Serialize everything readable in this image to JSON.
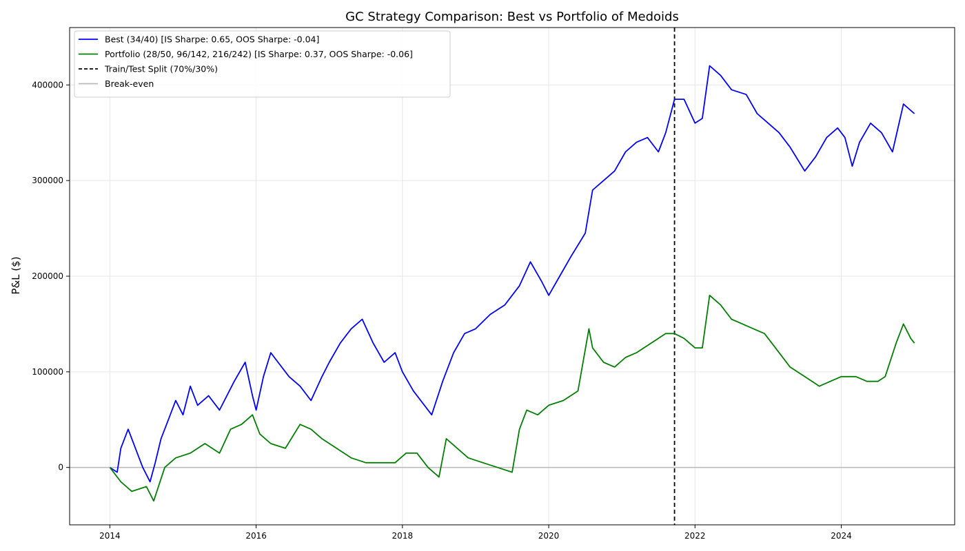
{
  "chart_data": {
    "type": "line",
    "title": "GC Strategy Comparison: Best vs Portfolio of Medoids",
    "xlabel": "",
    "ylabel": "P&L ($)",
    "xlim": [
      2013.45,
      2025.55
    ],
    "ylim": [
      -60000,
      460000
    ],
    "x_ticks": [
      2014,
      2016,
      2018,
      2020,
      2022,
      2024
    ],
    "y_ticks": [
      0,
      100000,
      200000,
      300000,
      400000
    ],
    "grid": true,
    "legend_position": "top-left",
    "split_x": 2021.72,
    "breakeven_y": 0,
    "series": [
      {
        "name": "Best (34/40) [IS Sharpe: 0.65, OOS Sharpe: -0.04]",
        "color": "#0000ff",
        "x": [
          2014.0,
          2014.1,
          2014.15,
          2014.25,
          2014.3,
          2014.35,
          2014.45,
          2014.55,
          2014.62,
          2014.7,
          2014.8,
          2014.9,
          2015.0,
          2015.1,
          2015.2,
          2015.35,
          2015.5,
          2015.7,
          2015.85,
          2015.95,
          2016.0,
          2016.1,
          2016.2,
          2016.3,
          2016.45,
          2016.6,
          2016.75,
          2016.9,
          2017.0,
          2017.15,
          2017.3,
          2017.45,
          2017.6,
          2017.75,
          2017.9,
          2018.0,
          2018.15,
          2018.3,
          2018.4,
          2018.55,
          2018.7,
          2018.85,
          2019.0,
          2019.2,
          2019.4,
          2019.6,
          2019.75,
          2019.9,
          2020.0,
          2020.15,
          2020.3,
          2020.5,
          2020.6,
          2020.75,
          2020.9,
          2021.05,
          2021.2,
          2021.35,
          2021.5,
          2021.6,
          2021.72,
          2021.85,
          2022.0,
          2022.1,
          2022.2,
          2022.35,
          2022.5,
          2022.7,
          2022.85,
          2023.0,
          2023.15,
          2023.3,
          2023.5,
          2023.65,
          2023.8,
          2023.95,
          2024.05,
          2024.15,
          2024.25,
          2024.4,
          2024.55,
          2024.7,
          2024.85,
          2025.0
        ],
        "y": [
          0,
          -5000,
          20000,
          40000,
          30000,
          20000,
          0,
          -15000,
          5000,
          30000,
          50000,
          70000,
          55000,
          85000,
          65000,
          75000,
          60000,
          90000,
          110000,
          75000,
          60000,
          95000,
          120000,
          110000,
          95000,
          85000,
          70000,
          95000,
          110000,
          130000,
          145000,
          155000,
          130000,
          110000,
          120000,
          100000,
          80000,
          65000,
          55000,
          90000,
          120000,
          140000,
          145000,
          160000,
          170000,
          190000,
          215000,
          195000,
          180000,
          200000,
          220000,
          245000,
          290000,
          300000,
          310000,
          330000,
          340000,
          345000,
          330000,
          350000,
          385000,
          385000,
          360000,
          365000,
          420000,
          410000,
          395000,
          390000,
          370000,
          360000,
          350000,
          335000,
          310000,
          325000,
          345000,
          355000,
          345000,
          315000,
          340000,
          360000,
          350000,
          330000,
          380000,
          370000
        ]
      },
      {
        "name": "Portfolio (28/50, 96/142, 216/242) [IS Sharpe: 0.37, OOS Sharpe: -0.06]",
        "color": "#008000",
        "x": [
          2014.0,
          2014.15,
          2014.3,
          2014.5,
          2014.6,
          2014.75,
          2014.9,
          2015.1,
          2015.3,
          2015.5,
          2015.65,
          2015.8,
          2015.95,
          2016.05,
          2016.2,
          2016.4,
          2016.6,
          2016.75,
          2016.9,
          2017.1,
          2017.3,
          2017.5,
          2017.7,
          2017.9,
          2018.05,
          2018.2,
          2018.35,
          2018.5,
          2018.6,
          2018.75,
          2018.9,
          2019.1,
          2019.3,
          2019.5,
          2019.6,
          2019.7,
          2019.85,
          2020.0,
          2020.2,
          2020.4,
          2020.55,
          2020.6,
          2020.75,
          2020.9,
          2021.05,
          2021.2,
          2021.4,
          2021.6,
          2021.72,
          2021.85,
          2022.0,
          2022.1,
          2022.2,
          2022.35,
          2022.5,
          2022.65,
          2022.8,
          2022.95,
          2023.1,
          2023.3,
          2023.5,
          2023.7,
          2023.85,
          2024.0,
          2024.2,
          2024.35,
          2024.5,
          2024.6,
          2024.75,
          2024.85,
          2024.95,
          2025.0
        ],
        "y": [
          0,
          -15000,
          -25000,
          -20000,
          -35000,
          0,
          10000,
          15000,
          25000,
          15000,
          40000,
          45000,
          55000,
          35000,
          25000,
          20000,
          45000,
          40000,
          30000,
          20000,
          10000,
          5000,
          5000,
          5000,
          15000,
          15000,
          0,
          -10000,
          30000,
          20000,
          10000,
          5000,
          0,
          -5000,
          40000,
          60000,
          55000,
          65000,
          70000,
          80000,
          145000,
          125000,
          110000,
          105000,
          115000,
          120000,
          130000,
          140000,
          140000,
          135000,
          125000,
          125000,
          180000,
          170000,
          155000,
          150000,
          145000,
          140000,
          125000,
          105000,
          95000,
          85000,
          90000,
          95000,
          95000,
          90000,
          90000,
          95000,
          130000,
          150000,
          135000,
          130000
        ]
      }
    ],
    "legend_entries": [
      {
        "label": "Best (34/40) [IS Sharpe: 0.65, OOS Sharpe: -0.04]",
        "color": "#0000ff",
        "style": "solid"
      },
      {
        "label": "Portfolio (28/50, 96/142, 216/242) [IS Sharpe: 0.37, OOS Sharpe: -0.06]",
        "color": "#008000",
        "style": "solid"
      },
      {
        "label": "Train/Test Split (70%/30%)",
        "color": "#000000",
        "style": "dashed"
      },
      {
        "label": "Break-even",
        "color": "#bbbbbb",
        "style": "solid"
      }
    ]
  }
}
